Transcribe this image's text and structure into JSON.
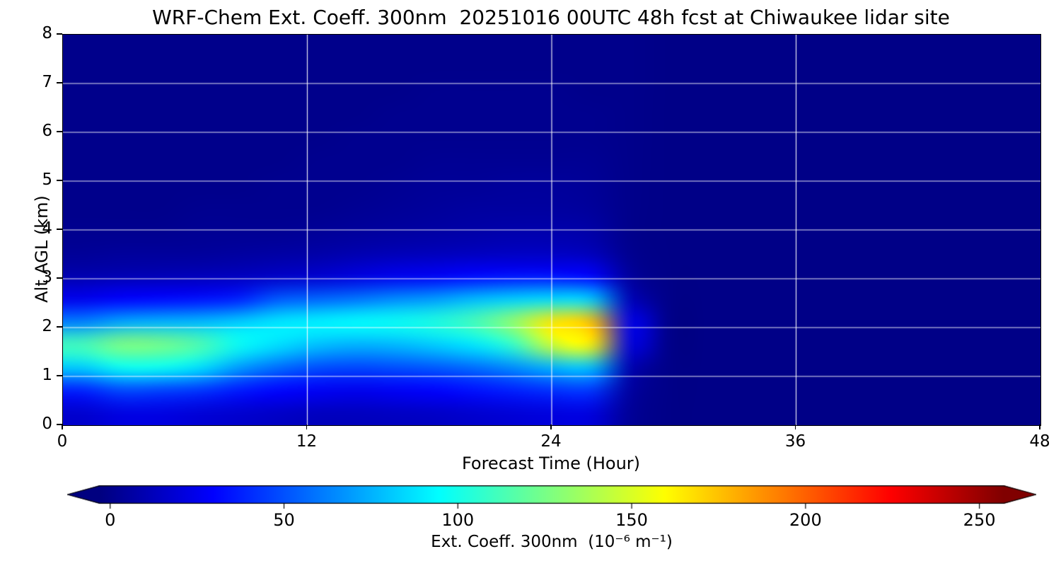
{
  "chart_data": {
    "type": "heatmap",
    "title": "WRF-Chem Ext. Coeff. 300nm  20251016 00UTC 48h fcst at Chiwaukee lidar site",
    "xlabel": "Forecast Time (Hour)",
    "ylabel": "Alt AGL (km)",
    "xlim": [
      0,
      48
    ],
    "ylim": [
      0,
      8
    ],
    "x_ticks": [
      0,
      12,
      24,
      36,
      48
    ],
    "y_ticks": [
      0,
      1,
      2,
      3,
      4,
      5,
      6,
      7,
      8
    ],
    "grid": true,
    "grid_color": "#ffffff",
    "colormap": "jet",
    "background_value_color": "#00008c",
    "x": [
      0,
      2,
      4,
      6,
      8,
      10,
      12,
      14,
      16,
      18,
      20,
      22,
      24,
      26,
      28,
      30,
      32,
      34,
      36,
      38,
      40,
      42,
      44,
      46,
      48
    ],
    "y": [
      0,
      0.5,
      1,
      1.5,
      2,
      2.5,
      3,
      3.5,
      4,
      4.5,
      5,
      5.5,
      6,
      6.5,
      7,
      7.5,
      8
    ],
    "row_order": "bottom-to-top (row i corresponds to y[i])",
    "values": [
      [
        20,
        25,
        25,
        22,
        20,
        18,
        16,
        16,
        17,
        18,
        20,
        22,
        24,
        24,
        6,
        2,
        2,
        2,
        2,
        2,
        2,
        2,
        2,
        2,
        2
      ],
      [
        40,
        50,
        48,
        45,
        38,
        33,
        30,
        28,
        30,
        32,
        36,
        40,
        44,
        46,
        8,
        2,
        2,
        2,
        2,
        2,
        2,
        2,
        2,
        2,
        2
      ],
      [
        85,
        100,
        100,
        90,
        72,
        60,
        52,
        50,
        52,
        55,
        60,
        68,
        78,
        82,
        12,
        2,
        2,
        2,
        2,
        2,
        2,
        2,
        2,
        2,
        2
      ],
      [
        115,
        130,
        128,
        118,
        100,
        90,
        82,
        78,
        80,
        85,
        92,
        110,
        150,
        165,
        25,
        2,
        2,
        2,
        2,
        2,
        2,
        2,
        2,
        2,
        2
      ],
      [
        65,
        75,
        78,
        80,
        85,
        92,
        95,
        98,
        100,
        105,
        115,
        135,
        168,
        178,
        28,
        2,
        2,
        2,
        2,
        2,
        2,
        2,
        2,
        2,
        2
      ],
      [
        28,
        32,
        34,
        36,
        40,
        55,
        58,
        62,
        68,
        72,
        80,
        85,
        88,
        85,
        14,
        2,
        2,
        2,
        2,
        2,
        2,
        2,
        2,
        2,
        2
      ],
      [
        12,
        13,
        14,
        15,
        16,
        18,
        20,
        24,
        28,
        30,
        34,
        36,
        36,
        32,
        7,
        2,
        2,
        2,
        2,
        2,
        2,
        2,
        2,
        2,
        2
      ],
      [
        6,
        7,
        7,
        7,
        8,
        9,
        10,
        12,
        14,
        15,
        16,
        17,
        17,
        15,
        4,
        2,
        2,
        2,
        2,
        2,
        2,
        2,
        2,
        2,
        2
      ],
      [
        4,
        4,
        4,
        5,
        5,
        5,
        6,
        7,
        8,
        9,
        10,
        11,
        11,
        10,
        3,
        2,
        2,
        2,
        2,
        2,
        2,
        2,
        2,
        2,
        2
      ],
      [
        3,
        3,
        3,
        4,
        4,
        4,
        4,
        5,
        6,
        7,
        8,
        8,
        8,
        7,
        3,
        2,
        2,
        2,
        2,
        2,
        2,
        2,
        2,
        2,
        2
      ],
      [
        3,
        3,
        3,
        3,
        3,
        4,
        4,
        4,
        5,
        6,
        6,
        7,
        7,
        6,
        3,
        2,
        2,
        2,
        2,
        2,
        2,
        2,
        2,
        2,
        2
      ],
      [
        3,
        3,
        3,
        3,
        3,
        3,
        4,
        4,
        4,
        5,
        5,
        5,
        5,
        5,
        3,
        2,
        2,
        2,
        2,
        2,
        2,
        2,
        2,
        2,
        2
      ],
      [
        3,
        3,
        3,
        3,
        3,
        3,
        3,
        4,
        4,
        4,
        4,
        4,
        4,
        4,
        3,
        2,
        2,
        2,
        2,
        2,
        2,
        2,
        2,
        2,
        2
      ],
      [
        3,
        3,
        3,
        3,
        3,
        3,
        3,
        3,
        4,
        4,
        4,
        4,
        4,
        4,
        3,
        2,
        2,
        2,
        2,
        2,
        2,
        2,
        2,
        2,
        2
      ],
      [
        3,
        3,
        3,
        3,
        3,
        3,
        3,
        3,
        3,
        4,
        4,
        4,
        4,
        3,
        3,
        2,
        2,
        2,
        2,
        2,
        2,
        2,
        2,
        2,
        2
      ],
      [
        3,
        3,
        3,
        3,
        3,
        3,
        3,
        3,
        3,
        3,
        3,
        3,
        3,
        3,
        3,
        2,
        2,
        2,
        2,
        2,
        2,
        2,
        2,
        2,
        2
      ],
      [
        3,
        3,
        3,
        3,
        3,
        3,
        3,
        3,
        3,
        3,
        3,
        3,
        3,
        3,
        3,
        2,
        2,
        2,
        2,
        2,
        2,
        2,
        2,
        2,
        2
      ]
    ],
    "colorbar": {
      "label": "Ext. Coeff. 300nm  (10⁻⁶ m⁻¹)",
      "ticks": [
        0,
        50,
        100,
        150,
        200,
        250
      ],
      "vmin": 0,
      "vmax": 260,
      "extend": "both"
    }
  }
}
